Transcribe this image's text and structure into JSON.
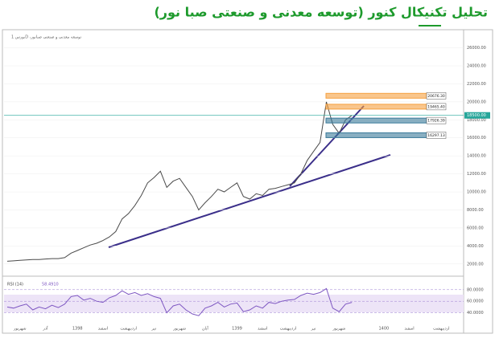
{
  "chart_data": [
    {
      "type": "line",
      "title": "تحلیل تکنیکال کنور (توسعه معدنی و صنعتی صبا نور)",
      "header": "بورس 1D ،توسعه معدنی و صنعتی صبانور",
      "categories": [
        null,
        null,
        "شهریور",
        null,
        null,
        null,
        "آذر",
        null,
        null,
        null,
        null,
        "1398",
        null,
        null,
        null,
        "اسفند",
        null,
        null,
        null,
        "اردیبهشت",
        null,
        null,
        null,
        "تیر",
        null,
        null,
        null,
        "شهریور",
        null,
        null,
        null,
        "آبان",
        null,
        null,
        null,
        null,
        "1399",
        null,
        null,
        null,
        "اسفند",
        null,
        null,
        null,
        "اردیبهشت",
        null,
        null,
        null,
        "تیر",
        null,
        null,
        null,
        "شهریور",
        null,
        null,
        null,
        null,
        null,
        null,
        "1400",
        null,
        null,
        null,
        "اسفند",
        null,
        null,
        null,
        null,
        "اردیبهشت",
        null,
        null,
        null
      ],
      "series": [
        {
          "name": "کنور",
          "color": "#4a4a4a",
          "values": [
            2300,
            2350,
            2400,
            2450,
            2500,
            2500,
            2550,
            2600,
            2600,
            2700,
            3200,
            3500,
            3800,
            4100,
            4300,
            4600,
            5000,
            5600,
            7000,
            7600,
            8500,
            9600,
            11000,
            11600,
            12300,
            10500,
            11200,
            11500,
            10500,
            9500,
            8000,
            8800,
            9500,
            10300,
            10000,
            10500,
            11000,
            9500,
            9200,
            9800,
            9600,
            10300,
            10400,
            10600,
            10800,
            11000,
            12000,
            13500,
            14500,
            15500,
            20000,
            17500,
            16500,
            18000,
            18500,
            null,
            null,
            null,
            null,
            null,
            null,
            null,
            null,
            null,
            null,
            null,
            null,
            null,
            null,
            null,
            null,
            null
          ]
        }
      ],
      "ylim": [
        1000,
        27300
      ],
      "yticks": [
        {
          "value": 2000,
          "label": "2000.00"
        },
        {
          "value": 4000,
          "label": "4000.00"
        },
        {
          "value": 6000,
          "label": "6000.00"
        },
        {
          "value": 8000,
          "label": "8000.00"
        },
        {
          "value": 10000,
          "label": "10000.00"
        },
        {
          "value": 12000,
          "label": "12000.00"
        },
        {
          "value": 14000,
          "label": "14000.00"
        },
        {
          "value": 16000,
          "label": "16000.00"
        },
        {
          "value": 18000,
          "label": "18000.00"
        },
        {
          "value": 20000,
          "label": "20000.00"
        },
        {
          "value": 22000,
          "label": "22000.00"
        },
        {
          "value": 24000,
          "label": "24000.00"
        },
        {
          "value": 26000,
          "label": "26000.00"
        }
      ],
      "levels": [
        {
          "value": 20676.3,
          "label": "20676.30",
          "color": "#f5a040"
        },
        {
          "value": 19465.4,
          "label": "19465.40",
          "color": "#f5a040"
        },
        {
          "value": 17926.39,
          "label": "17926.39",
          "color": "#3a7a9a"
        },
        {
          "value": 16297.13,
          "label": "16297.13",
          "color": "#3a7a9a"
        }
      ],
      "last": {
        "value": 18500,
        "label": "18500.00",
        "color": "#26a69a"
      }
    },
    {
      "type": "line",
      "title": "RSI (14)",
      "series": [
        {
          "name": "RSI",
          "color": "#7e57c2",
          "values": [
            50,
            48,
            52,
            55,
            45,
            50,
            47,
            53,
            49,
            55,
            68,
            70,
            62,
            65,
            60,
            58,
            66,
            70,
            78,
            72,
            75,
            70,
            73,
            68,
            65,
            40,
            52,
            55,
            45,
            38,
            35,
            48,
            52,
            58,
            50,
            55,
            57,
            42,
            45,
            52,
            48,
            58,
            56,
            60,
            62,
            63,
            70,
            74,
            72,
            75,
            82,
            48,
            42,
            55,
            58
          ]
        }
      ],
      "value_label": {
        "value": 58.491,
        "label": "58.4910"
      },
      "ylim": [
        20,
        95
      ],
      "yticks": [
        {
          "value": 40,
          "label": "40.0000"
        },
        {
          "value": 60,
          "label": "60.0000"
        },
        {
          "value": 80,
          "label": "80.0000"
        }
      ]
    }
  ]
}
